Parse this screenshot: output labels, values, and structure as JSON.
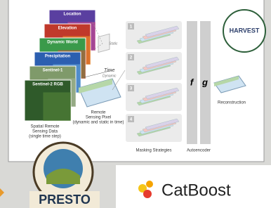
{
  "diagram": {
    "layers": [
      "Location",
      "Elevation",
      "Dynamic World",
      "Precipitation",
      "Sentinel-1",
      "Sentinel-2 RGB"
    ],
    "static_label": "Static",
    "time_label": "Time",
    "dynamic_label": "Dynamic",
    "input_caption": [
      "Spatial Remote",
      "Sensing Data",
      "(single time step)"
    ],
    "pixel_caption": [
      "Remote",
      "Sensing Pixel",
      "(dynamic and static in time)"
    ],
    "masks": [
      "1",
      "2",
      "3",
      "4"
    ],
    "masks_caption": "Masking Strategies",
    "encoder": "f",
    "decoder": "g",
    "autoencoder_caption": "Autoencoder",
    "output_caption": "Reconstruction"
  },
  "logos": {
    "harvest": "HARVEST",
    "presto": "PRESTO",
    "catboost": "CatBoost"
  }
}
